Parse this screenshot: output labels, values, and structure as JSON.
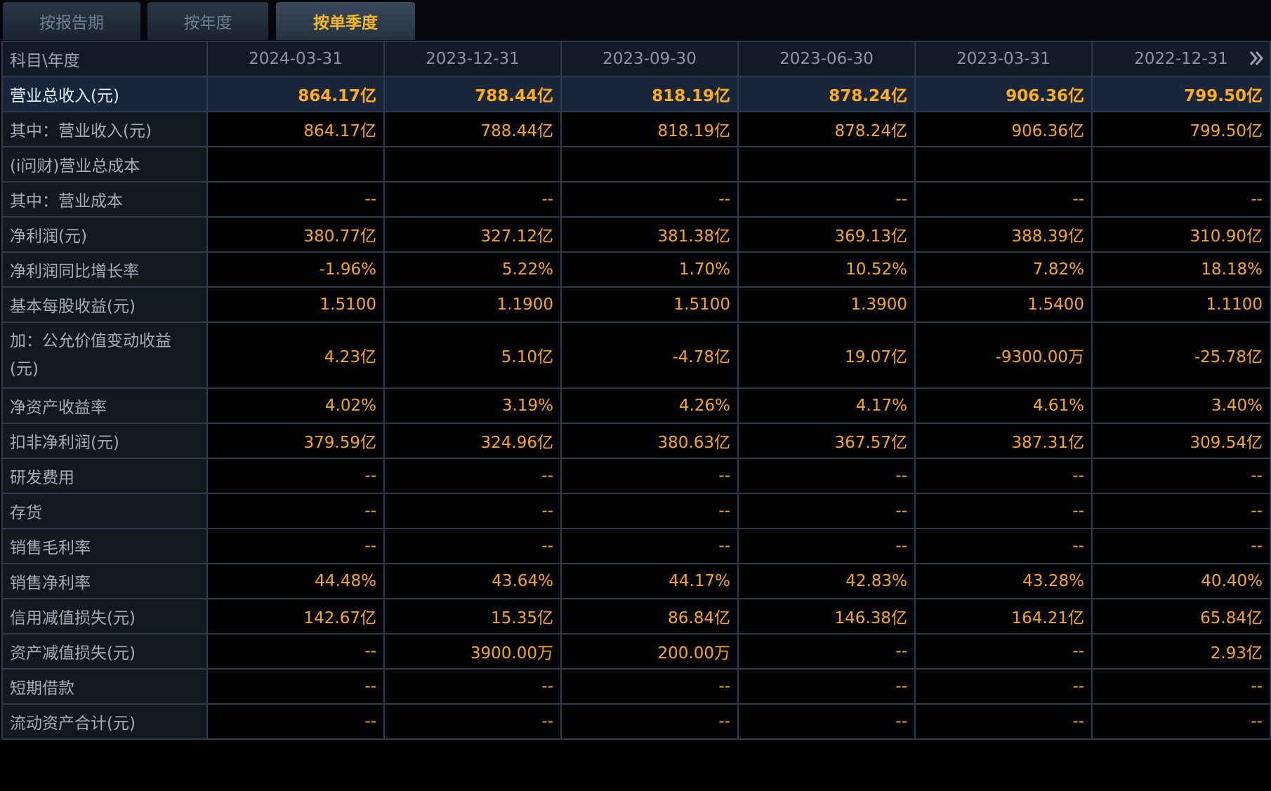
{
  "tabs": [
    {
      "label": "按报告期",
      "active": false
    },
    {
      "label": "按年度",
      "active": false
    },
    {
      "label": "按单季度",
      "active": true
    }
  ],
  "table": {
    "corner_label": "科目\\年度",
    "columns": [
      "2024-03-31",
      "2023-12-31",
      "2023-09-30",
      "2023-06-30",
      "2023-03-31",
      "2022-12-31"
    ],
    "next_icon": "double-chevron-right-icon",
    "rows": [
      {
        "label": "营业总收入(元)",
        "highlight": true,
        "values": [
          "864.17亿",
          "788.44亿",
          "818.19亿",
          "878.24亿",
          "906.36亿",
          "799.50亿"
        ]
      },
      {
        "label": "其中：营业收入(元)",
        "values": [
          "864.17亿",
          "788.44亿",
          "818.19亿",
          "878.24亿",
          "906.36亿",
          "799.50亿"
        ]
      },
      {
        "label": "(i问财)营业总成本",
        "values": [
          "",
          "",
          "",
          "",
          "",
          ""
        ]
      },
      {
        "label": "其中：营业成本",
        "values": [
          "--",
          "--",
          "--",
          "--",
          "--",
          "--"
        ]
      },
      {
        "label": "净利润(元)",
        "values": [
          "380.77亿",
          "327.12亿",
          "381.38亿",
          "369.13亿",
          "388.39亿",
          "310.90亿"
        ]
      },
      {
        "label": "净利润同比增长率",
        "values": [
          "-1.96%",
          "5.22%",
          "1.70%",
          "10.52%",
          "7.82%",
          "18.18%"
        ]
      },
      {
        "label": "基本每股收益(元)",
        "values": [
          "1.5100",
          "1.1900",
          "1.5100",
          "1.3900",
          "1.5400",
          "1.1100"
        ]
      },
      {
        "label": "加：公允价值变动收益(元)",
        "tall": true,
        "values": [
          "4.23亿",
          "5.10亿",
          "-4.78亿",
          "19.07亿",
          "-9300.00万",
          "-25.78亿"
        ]
      },
      {
        "label": "净资产收益率",
        "values": [
          "4.02%",
          "3.19%",
          "4.26%",
          "4.17%",
          "4.61%",
          "3.40%"
        ]
      },
      {
        "label": "扣非净利润(元)",
        "values": [
          "379.59亿",
          "324.96亿",
          "380.63亿",
          "367.57亿",
          "387.31亿",
          "309.54亿"
        ]
      },
      {
        "label": "研发费用",
        "values": [
          "--",
          "--",
          "--",
          "--",
          "--",
          "--"
        ]
      },
      {
        "label": "存货",
        "values": [
          "--",
          "--",
          "--",
          "--",
          "--",
          "--"
        ]
      },
      {
        "label": "销售毛利率",
        "values": [
          "--",
          "--",
          "--",
          "--",
          "--",
          "--"
        ]
      },
      {
        "label": "销售净利率",
        "values": [
          "44.48%",
          "43.64%",
          "44.17%",
          "42.83%",
          "43.28%",
          "40.40%"
        ]
      },
      {
        "label": "信用减值损失(元)",
        "values": [
          "142.67亿",
          "15.35亿",
          "86.84亿",
          "146.38亿",
          "164.21亿",
          "65.84亿"
        ]
      },
      {
        "label": "资产减值损失(元)",
        "values": [
          "--",
          "3900.00万",
          "200.00万",
          "--",
          "--",
          "2.93亿"
        ]
      },
      {
        "label": "短期借款",
        "values": [
          "--",
          "--",
          "--",
          "--",
          "--",
          "--"
        ]
      },
      {
        "label": "流动资产合计(元)",
        "values": [
          "--",
          "--",
          "--",
          "--",
          "--",
          "--"
        ]
      }
    ]
  }
}
